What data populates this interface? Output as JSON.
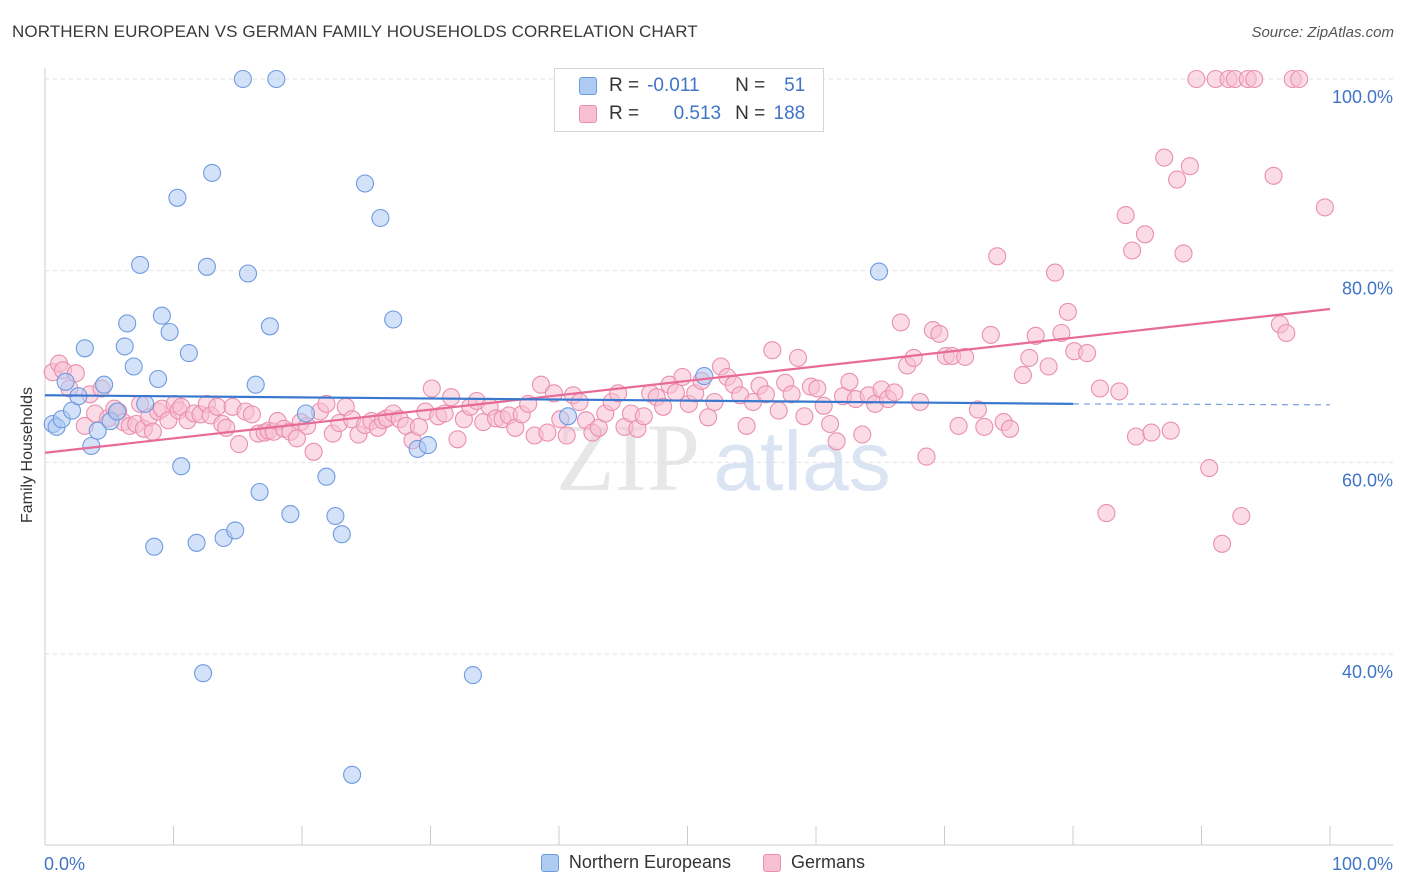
{
  "title": "NORTHERN EUROPEAN VS GERMAN FAMILY HOUSEHOLDS CORRELATION CHART",
  "source": "Source: ZipAtlas.com",
  "watermark": {
    "zip": "ZIP",
    "atlas": "atlas"
  },
  "legend": {
    "rows": [
      {
        "r_label": "R =",
        "r_value": "-0.011",
        "n_label": "N =",
        "n_value": "51"
      },
      {
        "r_label": "R =",
        "r_value": "0.513",
        "n_label": "N =",
        "n_value": "188"
      }
    ]
  },
  "chart_data": {
    "type": "scatter",
    "title": "NORTHERN EUROPEAN VS GERMAN FAMILY HOUSEHOLDS CORRELATION CHART",
    "xlabel": "",
    "ylabel": "Family Households",
    "xlim": [
      0,
      100
    ],
    "ylim": [
      20,
      102
    ],
    "x_tick_labels": [
      "0.0%",
      "100.0%"
    ],
    "y_ticks": [
      40,
      60,
      80,
      100
    ],
    "y_tick_labels": [
      "40.0%",
      "60.0%",
      "80.0%",
      "100.0%"
    ],
    "grid": true,
    "legend_position": "bottom-center",
    "colors": {
      "northern_fill": "#aecbf2",
      "northern_stroke": "#6e9be0",
      "northern_line": "#3a78d0",
      "german_fill": "#f7bfd2",
      "german_stroke": "#ea8fae",
      "german_line": "#e76a97",
      "tick_label": "#3f74c6"
    },
    "series": [
      {
        "name": "Northern Europeans",
        "r": -0.011,
        "n": 51,
        "trend": {
          "x0": 0,
          "y0": 67.0,
          "x1": 80,
          "y1": 66.1,
          "dash_to": 100,
          "dash_y": 66.0
        },
        "points": [
          [
            0.6,
            64.0
          ],
          [
            0.9,
            63.7
          ],
          [
            1.3,
            64.5
          ],
          [
            1.6,
            68.4
          ],
          [
            2.1,
            65.4
          ],
          [
            2.6,
            66.9
          ],
          [
            3.1,
            71.9
          ],
          [
            3.6,
            61.7
          ],
          [
            4.1,
            63.3
          ],
          [
            4.6,
            68.1
          ],
          [
            5.1,
            64.3
          ],
          [
            5.6,
            65.3
          ],
          [
            6.2,
            72.1
          ],
          [
            6.4,
            74.5
          ],
          [
            6.9,
            70.0
          ],
          [
            7.4,
            80.6
          ],
          [
            7.8,
            66.1
          ],
          [
            8.5,
            51.2
          ],
          [
            8.8,
            68.7
          ],
          [
            9.1,
            75.3
          ],
          [
            9.7,
            73.6
          ],
          [
            10.3,
            87.6
          ],
          [
            10.6,
            59.6
          ],
          [
            11.2,
            71.4
          ],
          [
            11.8,
            51.6
          ],
          [
            12.3,
            38.0
          ],
          [
            12.6,
            80.4
          ],
          [
            13.0,
            90.2
          ],
          [
            13.9,
            52.1
          ],
          [
            14.8,
            52.9
          ],
          [
            15.4,
            100.0
          ],
          [
            15.8,
            79.7
          ],
          [
            16.4,
            68.1
          ],
          [
            16.7,
            56.9
          ],
          [
            17.5,
            74.2
          ],
          [
            18.0,
            100.0
          ],
          [
            19.1,
            54.6
          ],
          [
            20.3,
            65.1
          ],
          [
            21.9,
            58.5
          ],
          [
            22.6,
            54.4
          ],
          [
            23.1,
            52.5
          ],
          [
            23.9,
            27.4
          ],
          [
            24.9,
            89.1
          ],
          [
            26.1,
            85.5
          ],
          [
            27.1,
            74.9
          ],
          [
            29.0,
            61.4
          ],
          [
            29.8,
            61.8
          ],
          [
            33.3,
            37.8
          ],
          [
            40.7,
            64.8
          ],
          [
            51.3,
            69.0
          ],
          [
            64.9,
            79.9
          ]
        ]
      },
      {
        "name": "Germans",
        "r": 0.513,
        "n": 188,
        "trend": {
          "x0": 0,
          "y0": 61.0,
          "x1": 100,
          "y1": 76.0
        },
        "points": [
          [
            0.6,
            69.4
          ],
          [
            1.1,
            70.3
          ],
          [
            1.4,
            69.6
          ],
          [
            1.9,
            67.7
          ],
          [
            2.4,
            69.3
          ],
          [
            3.1,
            63.8
          ],
          [
            3.5,
            67.1
          ],
          [
            3.9,
            65.1
          ],
          [
            4.4,
            67.7
          ],
          [
            4.9,
            64.6
          ],
          [
            5.4,
            65.6
          ],
          [
            5.7,
            65.3
          ],
          [
            6.1,
            64.2
          ],
          [
            6.6,
            63.8
          ],
          [
            7.1,
            64.0
          ],
          [
            7.4,
            66.1
          ],
          [
            7.7,
            63.5
          ],
          [
            8.1,
            64.7
          ],
          [
            8.4,
            63.2
          ],
          [
            8.8,
            65.3
          ],
          [
            9.1,
            65.6
          ],
          [
            9.6,
            64.4
          ],
          [
            10.1,
            66.1
          ],
          [
            10.4,
            65.4
          ],
          [
            10.6,
            65.8
          ],
          [
            11.1,
            64.4
          ],
          [
            11.6,
            65.1
          ],
          [
            12.1,
            65.0
          ],
          [
            12.6,
            66.1
          ],
          [
            12.9,
            64.9
          ],
          [
            13.4,
            65.8
          ],
          [
            13.8,
            64.0
          ],
          [
            14.1,
            63.6
          ],
          [
            14.6,
            65.8
          ],
          [
            15.1,
            61.9
          ],
          [
            15.6,
            65.3
          ],
          [
            16.1,
            65.0
          ],
          [
            16.6,
            63.0
          ],
          [
            17.1,
            63.1
          ],
          [
            17.4,
            63.3
          ],
          [
            17.8,
            63.2
          ],
          [
            18.1,
            64.3
          ],
          [
            18.6,
            63.5
          ],
          [
            19.1,
            63.2
          ],
          [
            19.6,
            62.5
          ],
          [
            19.9,
            64.2
          ],
          [
            20.4,
            63.8
          ],
          [
            20.9,
            61.1
          ],
          [
            21.4,
            65.3
          ],
          [
            21.9,
            66.1
          ],
          [
            22.4,
            63.0
          ],
          [
            22.9,
            64.1
          ],
          [
            23.4,
            65.8
          ],
          [
            23.9,
            64.5
          ],
          [
            24.4,
            62.9
          ],
          [
            24.9,
            63.9
          ],
          [
            25.4,
            64.3
          ],
          [
            25.9,
            63.6
          ],
          [
            26.3,
            64.4
          ],
          [
            26.6,
            64.6
          ],
          [
            27.1,
            65.1
          ],
          [
            27.6,
            64.5
          ],
          [
            28.1,
            63.8
          ],
          [
            28.6,
            62.3
          ],
          [
            29.1,
            63.7
          ],
          [
            29.6,
            65.3
          ],
          [
            30.1,
            67.7
          ],
          [
            30.6,
            64.8
          ],
          [
            31.1,
            65.1
          ],
          [
            31.6,
            66.8
          ],
          [
            32.1,
            62.4
          ],
          [
            32.6,
            64.5
          ],
          [
            33.1,
            65.8
          ],
          [
            33.6,
            66.4
          ],
          [
            34.1,
            64.2
          ],
          [
            34.6,
            65.8
          ],
          [
            35.1,
            64.6
          ],
          [
            35.6,
            64.5
          ],
          [
            36.1,
            64.9
          ],
          [
            36.6,
            63.6
          ],
          [
            37.1,
            65.0
          ],
          [
            37.6,
            66.1
          ],
          [
            38.1,
            62.8
          ],
          [
            38.6,
            68.1
          ],
          [
            39.1,
            63.1
          ],
          [
            39.6,
            67.2
          ],
          [
            40.1,
            64.5
          ],
          [
            40.6,
            62.8
          ],
          [
            41.1,
            67.0
          ],
          [
            41.6,
            66.3
          ],
          [
            42.1,
            64.4
          ],
          [
            42.6,
            63.1
          ],
          [
            43.1,
            63.6
          ],
          [
            43.6,
            65.1
          ],
          [
            44.1,
            66.3
          ],
          [
            44.6,
            67.2
          ],
          [
            45.1,
            63.7
          ],
          [
            45.6,
            65.1
          ],
          [
            46.1,
            63.5
          ],
          [
            46.6,
            64.8
          ],
          [
            47.1,
            67.2
          ],
          [
            47.6,
            66.8
          ],
          [
            48.1,
            65.8
          ],
          [
            48.6,
            68.1
          ],
          [
            49.1,
            67.3
          ],
          [
            49.6,
            68.9
          ],
          [
            50.1,
            66.1
          ],
          [
            50.6,
            67.2
          ],
          [
            51.1,
            68.5
          ],
          [
            51.6,
            64.7
          ],
          [
            52.1,
            66.3
          ],
          [
            52.6,
            70.0
          ],
          [
            53.1,
            68.9
          ],
          [
            53.6,
            68.1
          ],
          [
            54.1,
            67.0
          ],
          [
            54.6,
            63.8
          ],
          [
            55.1,
            66.3
          ],
          [
            55.6,
            68.0
          ],
          [
            56.1,
            67.1
          ],
          [
            56.6,
            71.7
          ],
          [
            57.1,
            65.4
          ],
          [
            57.6,
            68.3
          ],
          [
            58.1,
            67.1
          ],
          [
            58.6,
            70.9
          ],
          [
            59.1,
            64.8
          ],
          [
            59.6,
            67.9
          ],
          [
            60.1,
            67.7
          ],
          [
            60.6,
            65.9
          ],
          [
            61.1,
            64.0
          ],
          [
            61.6,
            62.2
          ],
          [
            62.1,
            66.9
          ],
          [
            62.6,
            68.4
          ],
          [
            63.1,
            66.6
          ],
          [
            63.6,
            62.9
          ],
          [
            64.1,
            67.0
          ],
          [
            64.6,
            66.1
          ],
          [
            65.1,
            67.6
          ],
          [
            65.6,
            66.6
          ],
          [
            66.1,
            67.3
          ],
          [
            66.6,
            74.6
          ],
          [
            67.1,
            70.1
          ],
          [
            67.6,
            70.9
          ],
          [
            68.1,
            66.3
          ],
          [
            68.6,
            60.6
          ],
          [
            69.1,
            73.8
          ],
          [
            69.6,
            73.4
          ],
          [
            70.1,
            71.1
          ],
          [
            70.6,
            71.1
          ],
          [
            71.1,
            63.8
          ],
          [
            71.6,
            71.0
          ],
          [
            72.6,
            65.5
          ],
          [
            73.1,
            63.7
          ],
          [
            73.6,
            73.3
          ],
          [
            74.1,
            81.5
          ],
          [
            74.6,
            64.2
          ],
          [
            75.1,
            63.5
          ],
          [
            76.1,
            69.1
          ],
          [
            76.6,
            70.9
          ],
          [
            77.1,
            73.2
          ],
          [
            78.1,
            70.0
          ],
          [
            78.6,
            79.8
          ],
          [
            79.1,
            73.5
          ],
          [
            79.6,
            75.7
          ],
          [
            80.1,
            71.6
          ],
          [
            81.1,
            71.4
          ],
          [
            82.1,
            67.7
          ],
          [
            82.6,
            54.7
          ],
          [
            83.6,
            67.4
          ],
          [
            84.1,
            85.8
          ],
          [
            84.6,
            82.1
          ],
          [
            84.9,
            62.7
          ],
          [
            85.6,
            83.8
          ],
          [
            86.1,
            63.1
          ],
          [
            87.1,
            91.8
          ],
          [
            87.6,
            63.3
          ],
          [
            88.1,
            89.5
          ],
          [
            88.6,
            81.8
          ],
          [
            89.1,
            90.9
          ],
          [
            89.6,
            100.0
          ],
          [
            90.6,
            59.4
          ],
          [
            91.1,
            100.0
          ],
          [
            91.6,
            51.5
          ],
          [
            92.1,
            100.0
          ],
          [
            92.6,
            100.0
          ],
          [
            93.1,
            54.4
          ],
          [
            93.6,
            100.0
          ],
          [
            94.1,
            100.0
          ],
          [
            95.6,
            89.9
          ],
          [
            96.1,
            74.4
          ],
          [
            96.6,
            73.5
          ],
          [
            97.1,
            100.0
          ],
          [
            97.6,
            100.0
          ],
          [
            99.6,
            86.6
          ]
        ]
      }
    ]
  }
}
